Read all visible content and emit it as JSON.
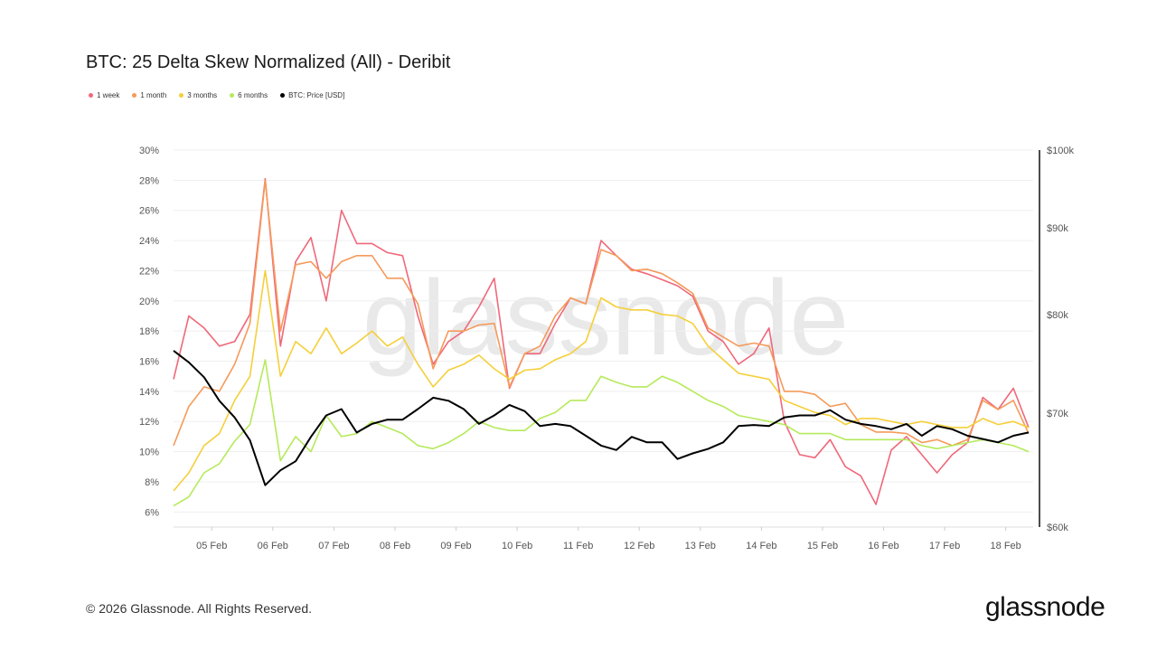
{
  "title": "BTC: 25 Delta Skew Normalized (All) - Deribit",
  "legend": [
    {
      "label": "1 week",
      "color": "#f0687a"
    },
    {
      "label": "1 month",
      "color": "#f59a5a"
    },
    {
      "label": "3 months",
      "color": "#f5cf3a"
    },
    {
      "label": "6 months",
      "color": "#b5ea5b"
    },
    {
      "label": "BTC: Price [USD]",
      "color": "#000000"
    }
  ],
  "footer": "© 2026 Glassnode. All Rights Reserved.",
  "logo": "glassnode",
  "watermark": "glassnode",
  "chart_data": {
    "type": "line",
    "title": "BTC: 25 Delta Skew Normalized (All) - Deribit",
    "xlim": [
      "2026-02-04T09:00",
      "2026-02-18T09:00"
    ],
    "x_ticks": [
      {
        "date": "2026-02-05T00:00",
        "label": "05 Feb"
      },
      {
        "date": "2026-02-06T00:00",
        "label": "06 Feb"
      },
      {
        "date": "2026-02-07T00:00",
        "label": "07 Feb"
      },
      {
        "date": "2026-02-08T00:00",
        "label": "08 Feb"
      },
      {
        "date": "2026-02-09T00:00",
        "label": "09 Feb"
      },
      {
        "date": "2026-02-10T00:00",
        "label": "10 Feb"
      },
      {
        "date": "2026-02-11T00:00",
        "label": "11 Feb"
      },
      {
        "date": "2026-02-12T00:00",
        "label": "12 Feb"
      },
      {
        "date": "2026-02-13T00:00",
        "label": "13 Feb"
      },
      {
        "date": "2026-02-14T00:00",
        "label": "14 Feb"
      },
      {
        "date": "2026-02-15T00:00",
        "label": "15 Feb"
      },
      {
        "date": "2026-02-16T00:00",
        "label": "16 Feb"
      },
      {
        "date": "2026-02-17T00:00",
        "label": "17 Feb"
      },
      {
        "date": "2026-02-18T00:00",
        "label": "18 Feb"
      }
    ],
    "y_left": {
      "lim": [
        5,
        30
      ],
      "ticks": [
        6,
        8,
        10,
        12,
        14,
        16,
        18,
        20,
        22,
        24,
        26,
        28,
        30
      ],
      "tick_labels": [
        "6%",
        "8%",
        "10%",
        "12%",
        "14%",
        "16%",
        "18%",
        "20%",
        "22%",
        "24%",
        "26%",
        "28%",
        "30%"
      ],
      "grid": true
    },
    "y_right": {
      "scale": "log",
      "lim": [
        60000,
        100000
      ],
      "ticks": [
        60000,
        70000,
        80000,
        90000,
        100000
      ],
      "tick_labels": [
        "$60k",
        "$70k",
        "$80k",
        "$90k",
        "$100k"
      ]
    },
    "legend_position": "top-left",
    "x": [
      "2026-02-04T09:00",
      "2026-02-04T15:00",
      "2026-02-04T21:00",
      "2026-02-05T03:00",
      "2026-02-05T09:00",
      "2026-02-05T15:00",
      "2026-02-05T21:00",
      "2026-02-06T03:00",
      "2026-02-06T09:00",
      "2026-02-06T15:00",
      "2026-02-06T21:00",
      "2026-02-07T03:00",
      "2026-02-07T09:00",
      "2026-02-07T15:00",
      "2026-02-07T21:00",
      "2026-02-08T03:00",
      "2026-02-08T09:00",
      "2026-02-08T15:00",
      "2026-02-08T21:00",
      "2026-02-09T03:00",
      "2026-02-09T09:00",
      "2026-02-09T15:00",
      "2026-02-09T21:00",
      "2026-02-10T03:00",
      "2026-02-10T09:00",
      "2026-02-10T15:00",
      "2026-02-10T21:00",
      "2026-02-11T03:00",
      "2026-02-11T09:00",
      "2026-02-11T15:00",
      "2026-02-11T21:00",
      "2026-02-12T03:00",
      "2026-02-12T09:00",
      "2026-02-12T15:00",
      "2026-02-12T21:00",
      "2026-02-13T03:00",
      "2026-02-13T09:00",
      "2026-02-13T15:00",
      "2026-02-13T21:00",
      "2026-02-14T03:00",
      "2026-02-14T09:00",
      "2026-02-14T15:00",
      "2026-02-14T21:00",
      "2026-02-15T03:00",
      "2026-02-15T09:00",
      "2026-02-15T15:00",
      "2026-02-15T21:00",
      "2026-02-16T03:00",
      "2026-02-16T09:00",
      "2026-02-16T15:00",
      "2026-02-16T21:00",
      "2026-02-17T03:00",
      "2026-02-17T09:00",
      "2026-02-17T15:00",
      "2026-02-17T21:00",
      "2026-02-18T03:00",
      "2026-02-18T09:00"
    ],
    "series": [
      {
        "name": "1 week",
        "axis": "left",
        "color": "#f0687a",
        "values": [
          14.8,
          19.0,
          18.2,
          17.0,
          17.3,
          19.1,
          28.1,
          17.0,
          22.6,
          24.2,
          20.0,
          26.0,
          23.8,
          23.8,
          23.2,
          23.0,
          19.0,
          15.8,
          17.3,
          18.0,
          19.6,
          21.5,
          14.2,
          16.5,
          16.5,
          18.5,
          20.2,
          19.8,
          24.0,
          23.0,
          22.1,
          21.8,
          21.4,
          21.0,
          20.3,
          18.0,
          17.3,
          15.8,
          16.5,
          18.2,
          12.0,
          9.8,
          9.6,
          10.8,
          9.0,
          8.4,
          6.5,
          10.1,
          11.0,
          9.8,
          8.6,
          9.8,
          10.6,
          13.6,
          12.8,
          14.2,
          11.6
        ]
      },
      {
        "name": "1 month",
        "axis": "left",
        "color": "#f59a5a",
        "values": [
          10.4,
          13.0,
          14.3,
          14.0,
          15.8,
          18.5,
          28.0,
          18.0,
          22.4,
          22.6,
          21.5,
          22.6,
          23.0,
          23.0,
          21.5,
          21.5,
          19.8,
          15.5,
          18.0,
          18.0,
          18.4,
          18.5,
          14.3,
          16.5,
          17.0,
          19.0,
          20.2,
          19.8,
          23.4,
          23.0,
          22.0,
          22.1,
          21.8,
          21.2,
          20.5,
          18.2,
          17.6,
          17.0,
          17.2,
          17.0,
          14.0,
          14.0,
          13.8,
          13.0,
          13.2,
          11.8,
          11.3,
          11.3,
          11.2,
          10.6,
          10.8,
          10.4,
          10.8,
          13.4,
          12.8,
          13.4,
          11.2
        ]
      },
      {
        "name": "3 months",
        "axis": "left",
        "color": "#f5cf3a",
        "values": [
          7.4,
          8.6,
          10.4,
          11.2,
          13.4,
          15.0,
          22.0,
          15.0,
          17.3,
          16.5,
          18.2,
          16.5,
          17.2,
          18.0,
          17.0,
          17.6,
          15.8,
          14.3,
          15.4,
          15.8,
          16.4,
          15.5,
          14.8,
          15.4,
          15.5,
          16.1,
          16.5,
          17.3,
          20.2,
          19.6,
          19.4,
          19.4,
          19.1,
          19.0,
          18.5,
          17.0,
          16.1,
          15.2,
          15.0,
          14.8,
          13.4,
          13.0,
          12.6,
          12.4,
          11.8,
          12.2,
          12.2,
          12.0,
          11.8,
          12.0,
          11.8,
          11.6,
          11.6,
          12.2,
          11.8,
          12.0,
          11.6
        ]
      },
      {
        "name": "6 months",
        "axis": "left",
        "color": "#b5ea5b",
        "values": [
          6.4,
          7.0,
          8.6,
          9.2,
          10.7,
          11.8,
          16.1,
          9.4,
          11.0,
          10.0,
          12.4,
          11.0,
          11.2,
          12.0,
          11.6,
          11.2,
          10.4,
          10.2,
          10.6,
          11.2,
          12.0,
          11.6,
          11.4,
          11.4,
          12.2,
          12.6,
          13.4,
          13.4,
          15.0,
          14.6,
          14.3,
          14.3,
          15.0,
          14.6,
          14.0,
          13.4,
          13.0,
          12.4,
          12.2,
          12.0,
          11.8,
          11.2,
          11.2,
          11.2,
          10.8,
          10.8,
          10.8,
          10.8,
          10.8,
          10.4,
          10.2,
          10.4,
          10.6,
          10.8,
          10.6,
          10.4,
          10.0
        ]
      },
      {
        "name": "BTC: Price [USD]",
        "axis": "right",
        "color": "#000000",
        "values": [
          76200,
          75000,
          73500,
          71200,
          69600,
          67500,
          63500,
          64800,
          65600,
          67800,
          69800,
          70400,
          68200,
          69000,
          69400,
          69400,
          70400,
          71500,
          71200,
          70400,
          69000,
          69800,
          70800,
          70200,
          68800,
          69000,
          68800,
          67900,
          67000,
          66600,
          67800,
          67300,
          67300,
          65800,
          66300,
          66700,
          67300,
          68800,
          68900,
          68800,
          69600,
          69800,
          69800,
          70300,
          69400,
          69000,
          68800,
          68500,
          69000,
          67900,
          68800,
          68500,
          67900,
          67600,
          67300,
          67900,
          68200
        ]
      }
    ]
  }
}
